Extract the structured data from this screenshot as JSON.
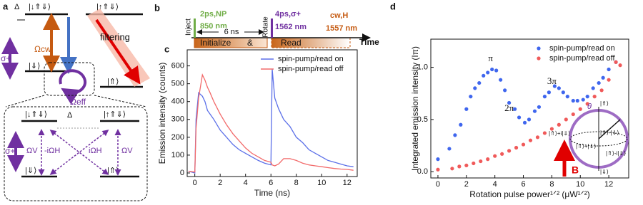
{
  "panel_labels": [
    "a",
    "b",
    "c",
    "d"
  ],
  "diagram_a": {
    "delta": "Δ",
    "trion_left": "|↓⇑⇓⟩",
    "trion_right": "|↑⇑⇓⟩",
    "filtering": "filtering",
    "sigma": "σ+",
    "omega_cw": "Ωcw",
    "ground_left": "|⇓⟩",
    "ground_right": "|⇑⟩",
    "omega_eff": "Ωeff",
    "inset": {
      "trion_left": "|↓⇑⇓⟩",
      "delta": "Δ",
      "trion_right": "|↑⇑⇓⟩",
      "sigma": "σ+",
      "omega_v_left": "ΩV",
      "minus_i_omega_h": "-iΩH",
      "i_omega_h": "iΩH",
      "omega_v_right": "ΩV",
      "ground_left": "|⇓⟩",
      "ground_right": "|⇑⟩"
    }
  },
  "timeline_b": {
    "inject": "Inject",
    "inject_pulse": "2ps,NP",
    "inject_wavelength": "850 nm",
    "delay": "6 ns",
    "rotate": "Rotate",
    "rotate_pulse": "4ps,σ+",
    "rotate_wavelength": "1562 nm",
    "read_laser": "cw,H",
    "read_wavelength": "1557 nm",
    "initialize": "Initialize",
    "and": "&",
    "read": "Read",
    "axis": "Time"
  },
  "bloch_inset": {
    "theta": "θ",
    "up": "|⇑⟩",
    "down": "|⇓⟩",
    "minus": "|⇑⟩-|⇓⟩",
    "plus_i": "|⇑⟩+i|⇓⟩",
    "plus": "|⇑⟩+|⇓⟩",
    "minus_i": "|⇑⟩-i|⇓⟩",
    "field": "B"
  },
  "chart_data": [
    {
      "type": "line",
      "x_label": "Time (ns)",
      "y_label": "Emission intensity (counts)",
      "x": [
        -0.5,
        0,
        0.1,
        0.3,
        0.6,
        0.8,
        1,
        1.2,
        1.5,
        2,
        2.5,
        3,
        3.5,
        4,
        4.5,
        5,
        5.5,
        6,
        6.1,
        6.3,
        6.6,
        7,
        7.5,
        8,
        8.5,
        9,
        9.5,
        10,
        10.5,
        11,
        11.5,
        12,
        12.5
      ],
      "series": [
        {
          "name": "spin-pump/read on",
          "color": "#5b6fe8",
          "values": [
            10,
            0,
            300,
            450,
            430,
            400,
            350,
            330,
            300,
            240,
            200,
            160,
            130,
            110,
            90,
            70,
            55,
            45,
            580,
            420,
            360,
            300,
            260,
            200,
            170,
            130,
            110,
            90,
            70,
            60,
            50,
            40,
            35
          ]
        },
        {
          "name": "spin-pump/read off",
          "color": "#f26a6a",
          "values": [
            10,
            5,
            250,
            420,
            550,
            520,
            480,
            450,
            400,
            330,
            270,
            220,
            180,
            140,
            110,
            90,
            70,
            60,
            45,
            40,
            50,
            80,
            80,
            70,
            55,
            45,
            40,
            35,
            30,
            25,
            22,
            20,
            15
          ]
        }
      ],
      "xlim": [
        -0.6,
        12.8
      ],
      "ylim": [
        -20,
        690
      ],
      "xticks": [
        0,
        2,
        4,
        6,
        8,
        10,
        12
      ],
      "yticks": [
        0,
        100,
        200,
        300,
        400,
        500,
        600
      ],
      "legend": "upper right"
    },
    {
      "type": "scatter",
      "x_label": "Rotation pulse power¹ᐟ² (μW¹ᐟ²)",
      "y_label": "Integrated emission intensity (Iπ)",
      "series": [
        {
          "name": "spin-pump/read on",
          "color": "#3f66ee",
          "x": [
            0,
            0.8,
            1.2,
            1.6,
            2.0,
            2.3,
            2.6,
            2.9,
            3.2,
            3.5,
            3.8,
            4.1,
            4.4,
            4.7,
            5.0,
            5.4,
            5.7,
            6.1,
            6.4,
            6.8,
            7.1,
            7.5,
            7.8,
            8.2,
            8.5,
            8.8,
            9.1,
            9.5,
            9.8,
            10.2,
            10.5,
            10.9,
            11.3,
            11.6,
            12.0,
            12.5
          ],
          "values": [
            0.12,
            0.22,
            0.35,
            0.45,
            0.6,
            0.72,
            0.8,
            0.85,
            0.92,
            0.95,
            0.98,
            0.97,
            0.88,
            0.78,
            0.66,
            0.6,
            0.52,
            0.47,
            0.5,
            0.58,
            0.62,
            0.72,
            0.76,
            0.82,
            0.8,
            0.76,
            0.72,
            0.68,
            0.68,
            0.69,
            0.72,
            0.8,
            0.85,
            0.9,
            0.98,
            1.05
          ]
        },
        {
          "name": "spin-pump/read off",
          "color": "#f05a5a",
          "x": [
            0,
            1,
            1.5,
            2,
            2.5,
            3,
            3.5,
            4,
            4.5,
            5,
            5.5,
            6,
            6.5,
            7,
            7.5,
            8,
            8.5,
            9,
            9.5,
            10,
            10.5,
            11,
            11.5,
            12,
            12.5,
            12.8
          ],
          "values": [
            0.02,
            0.03,
            0.05,
            0.06,
            0.08,
            0.1,
            0.12,
            0.15,
            0.17,
            0.2,
            0.23,
            0.26,
            0.3,
            0.33,
            0.37,
            0.41,
            0.45,
            0.5,
            0.55,
            0.6,
            0.65,
            0.72,
            0.78,
            0.88,
            1.05,
            1.02
          ]
        }
      ],
      "annotations": [
        {
          "text": "π",
          "x": 3.7,
          "y": 1.08
        },
        {
          "text": "2π",
          "x": 5.0,
          "y": 0.6
        },
        {
          "text": "3π",
          "x": 8.0,
          "y": 0.86
        }
      ],
      "xlim": [
        -0.5,
        13.4
      ],
      "ylim": [
        -0.06,
        1.27
      ],
      "xticks": [
        0,
        2,
        4,
        6,
        8,
        10,
        12
      ],
      "yticks": [
        {
          "value": 0,
          "label": "0.0"
        },
        {
          "value": 0.5,
          "label": "0.5"
        },
        {
          "value": 1,
          "label": "1.0"
        }
      ],
      "legend": "upper right"
    }
  ]
}
